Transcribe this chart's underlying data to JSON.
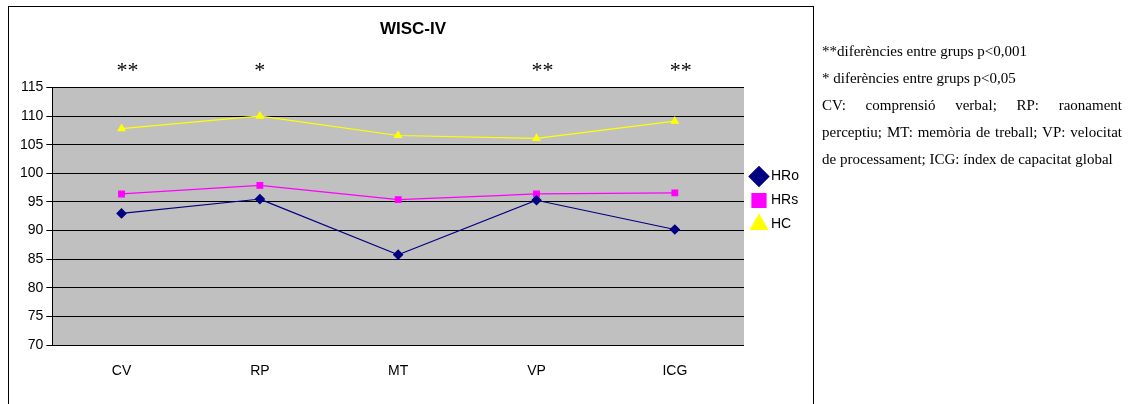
{
  "chart_data": {
    "type": "line",
    "title": "WISC-IV",
    "categories": [
      "CV",
      "RP",
      "MT",
      "VP",
      "ICG"
    ],
    "series": [
      {
        "name": "HRo",
        "color": "#000080",
        "marker": "diamond",
        "values": [
          93,
          95.5,
          85.8,
          95.3,
          90.2
        ]
      },
      {
        "name": "HRs",
        "color": "#ff00ff",
        "marker": "square",
        "values": [
          96.4,
          97.9,
          95.4,
          96.4,
          96.6
        ]
      },
      {
        "name": "HC",
        "color": "#ffff00",
        "marker": "triangle",
        "values": [
          107.8,
          110,
          106.6,
          106.1,
          109.1
        ]
      }
    ],
    "ylim": [
      70,
      115
    ],
    "yticks": [
      70,
      75,
      80,
      85,
      90,
      95,
      100,
      105,
      110,
      115
    ],
    "grid": "y",
    "legend": "right",
    "line_style": "solid",
    "annotations": [
      "**",
      "*",
      "**",
      "**",
      "**diferències entre grups p<0,001",
      "* diferències entre grups p<0,05",
      "CV: comprensió verbal; RP: raonament perceptiu; MT: memòria de treball; VP: velocitat de processament; ICG: índex de capacitat global"
    ]
  }
}
